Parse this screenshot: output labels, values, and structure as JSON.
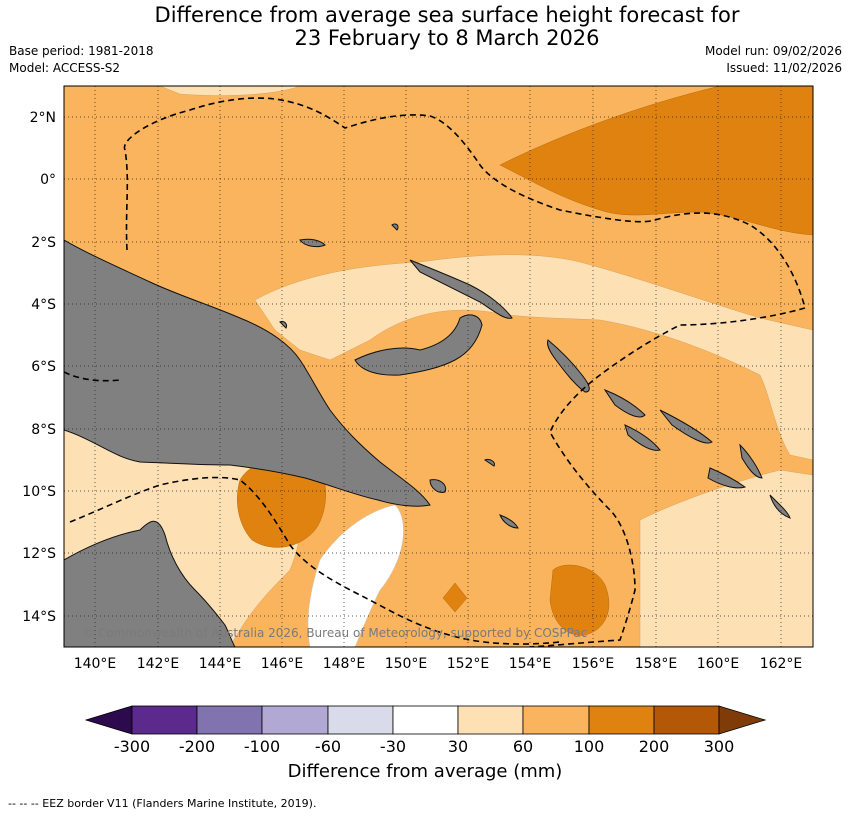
{
  "title": {
    "line1": "Difference from average sea surface height forecast for",
    "line2": "23 February to 8 March 2026"
  },
  "meta": {
    "base_period": "Base period: 1981-2018",
    "model": "Model: ACCESS-S2",
    "model_run": "Model run: 09/02/2026",
    "issued": "Issued: 11/02/2026"
  },
  "map": {
    "lat_labels": [
      "2°N",
      "0°",
      "2°S",
      "4°S",
      "6°S",
      "8°S",
      "10°S",
      "12°S",
      "14°S"
    ],
    "lon_labels": [
      "140°E",
      "142°E",
      "144°E",
      "146°E",
      "148°E",
      "150°E",
      "152°E",
      "154°E",
      "156°E",
      "158°E",
      "160°E",
      "162°E"
    ],
    "copyright": "© Commonwealth of Australia 2026, Bureau of Meteorology, supported by COSPPac"
  },
  "colorbar": {
    "ticks": [
      "-300",
      "-200",
      "-100",
      "-60",
      "-30",
      "30",
      "60",
      "100",
      "200",
      "300"
    ],
    "colors": [
      "#2d0a4e",
      "#5b2a8c",
      "#8073b0",
      "#b1a9d4",
      "#d9dbea",
      "#ffffff",
      "#fde1b5",
      "#f9b45d",
      "#e0820f",
      "#b35806",
      "#7f3b08"
    ],
    "label": "Difference from average (mm)"
  },
  "footnote": "--  --  -- EEZ border V11 (Flanders Marine Institute, 2019)."
}
